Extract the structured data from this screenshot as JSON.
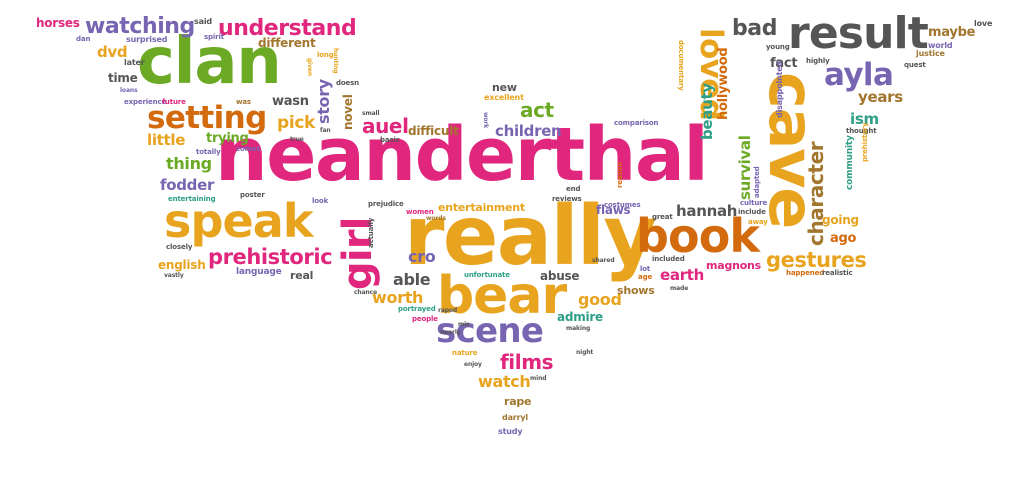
{
  "colors": {
    "pink": "#e0267d",
    "orange": "#e8a41e",
    "green": "#6caa25",
    "purple": "#7765b1",
    "teal": "#2e9f86",
    "red": "#e3561f",
    "brown": "#a2762e",
    "gray": "#555555",
    "burnt": "#d36a0d"
  },
  "words": {
    "neanderthal": "neanderthal",
    "really": "really",
    "clan": "clan",
    "cave": "cave",
    "bear": "bear",
    "book": "book",
    "result": "result",
    "speak": "speak",
    "scene": "scene",
    "setting": "setting",
    "girl": "girl",
    "loved": "loved",
    "ayla": "ayla",
    "watching": "watching",
    "understand": "understand",
    "prehistoric": "prehistoric",
    "gestures": "gestures",
    "character": "character",
    "bad": "bad",
    "films": "films",
    "watch": "watch",
    "auel": "auel",
    "act": "act",
    "children": "children",
    "able": "able",
    "worth": "worth",
    "good": "good",
    "hannah": "hannah",
    "cro": "cro",
    "pick": "pick",
    "story": "story",
    "thing": "thing",
    "fodder": "fodder",
    "little": "little",
    "trying": "trying",
    "english": "english",
    "dvd": "dvd",
    "horses": "horses",
    "different": "different",
    "wasn": "wasn",
    "novel": "novel",
    "years": "years",
    "ism": "ism",
    "going": "going",
    "ago": "ago",
    "maybe": "maybe",
    "fact": "fact",
    "beauty": "beauty",
    "survival": "survival",
    "hollywood": "hollywood",
    "earth": "earth",
    "magnons": "magnons",
    "flaws": "flaws",
    "shows": "shows",
    "admire": "admire",
    "abuse": "abuse",
    "entertainment": "entertainment",
    "difficult": "difficult",
    "new": "new",
    "excellent": "excellent",
    "rape": "rape",
    "darryl": "darryl",
    "study": "study",
    "real": "real",
    "language": "language",
    "time": "time",
    "later": "later",
    "dan": "dan",
    "said": "said",
    "spirit": "spirit",
    "surprised": "surprised",
    "love": "love",
    "world": "world",
    "justice": "justice",
    "quest": "quest",
    "young": "young",
    "highly": "highly",
    "disappointed": "disappointed",
    "community": "community",
    "thought": "thought",
    "prehistory": "prehistory",
    "happened": "happened",
    "realistic": "realistic",
    "culture": "culture",
    "include": "include",
    "away": "away",
    "adapted": "adapted",
    "documentary": "documentary",
    "great": "great",
    "included": "included",
    "lot": "lot",
    "age": "age",
    "costumes": "costumes",
    "comparison": "comparison",
    "reason": "reason",
    "end": "end",
    "reviews": "reviews",
    "women": "women",
    "prejudice": "prejudice",
    "actually": "actually",
    "look": "look",
    "poster": "poster",
    "entertaining": "entertaining",
    "totally": "totally",
    "comes": "comes",
    "closely": "closely",
    "vastly": "vastly",
    "experience": "experience",
    "future": "future",
    "was": "was",
    "doesn": "doesn",
    "small": "small",
    "basic": "basic",
    "true": "true",
    "fan": "fan",
    "long": "long",
    "given": "given",
    "unfortunate": "unfortunate",
    "chance": "chance",
    "portrayed": "portrayed",
    "people": "people",
    "raped": "raped",
    "making": "making",
    "nature": "nature",
    "enjoy": "enjoy",
    "night": "night",
    "mind": "mind",
    "loans": "loans",
    "hunting": "hunting",
    "shared": "shared",
    "made": "made",
    "words": "words",
    "nearly": "nearly",
    "work": "work",
    "mis": "mis"
  }
}
